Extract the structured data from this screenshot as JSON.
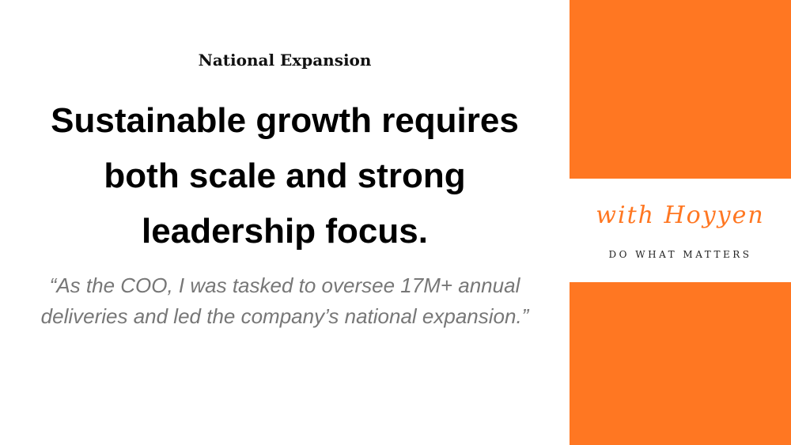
{
  "slide": {
    "kicker": "National Expansion",
    "headline": "Sustainable growth requires both scale and strong leadership focus.",
    "quote": "“As the COO, I was tasked to oversee 17M+ annual deliveries and led the company’s national expansion.”"
  },
  "brand": {
    "logo_text": "with Hoyyen",
    "tagline": "DO WHAT MATTERS",
    "accent_color": "#FF7722"
  }
}
